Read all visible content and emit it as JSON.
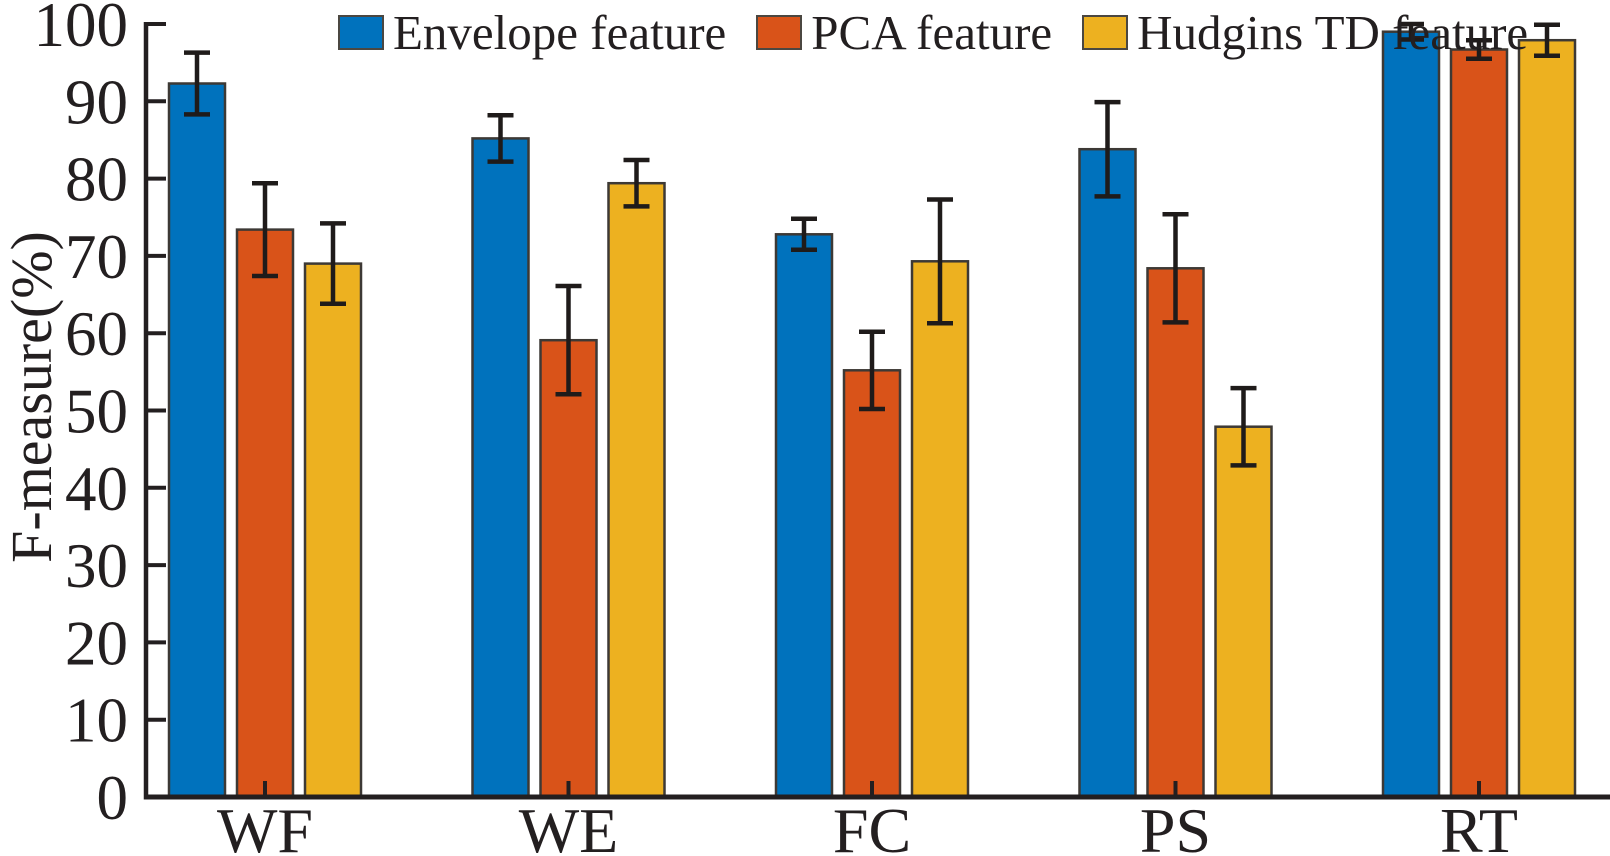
{
  "chart_data": {
    "type": "bar",
    "title": "",
    "xlabel": "",
    "ylabel": "F-measure(%)",
    "categories": [
      "WF",
      "WE",
      "FC",
      "PS",
      "RT"
    ],
    "series": [
      {
        "name": "Envelope feature",
        "color": "#0072BD",
        "values": [
          92.3,
          85.2,
          72.8,
          83.8,
          99.0
        ],
        "errors": [
          4.0,
          3.0,
          2.0,
          6.1,
          1.0
        ]
      },
      {
        "name": "PCA feature",
        "color": "#D95319",
        "values": [
          73.4,
          59.1,
          55.2,
          68.4,
          96.7
        ],
        "errors": [
          6.0,
          7.0,
          5.0,
          7.0,
          1.2
        ]
      },
      {
        "name": "Hudgins TD feature",
        "color": "#EDB120",
        "values": [
          69.0,
          79.4,
          69.3,
          47.9,
          97.9
        ],
        "errors": [
          5.2,
          3.0,
          8.0,
          5.0,
          2.0
        ]
      }
    ],
    "ylim": [
      0,
      100
    ],
    "yticks": [
      0,
      10,
      20,
      30,
      40,
      50,
      60,
      70,
      80,
      90,
      100
    ],
    "grid": false,
    "error_bars": true,
    "legend_position": "top",
    "axis_color": "#231F20",
    "bar_edge_color": "#3D3935"
  }
}
